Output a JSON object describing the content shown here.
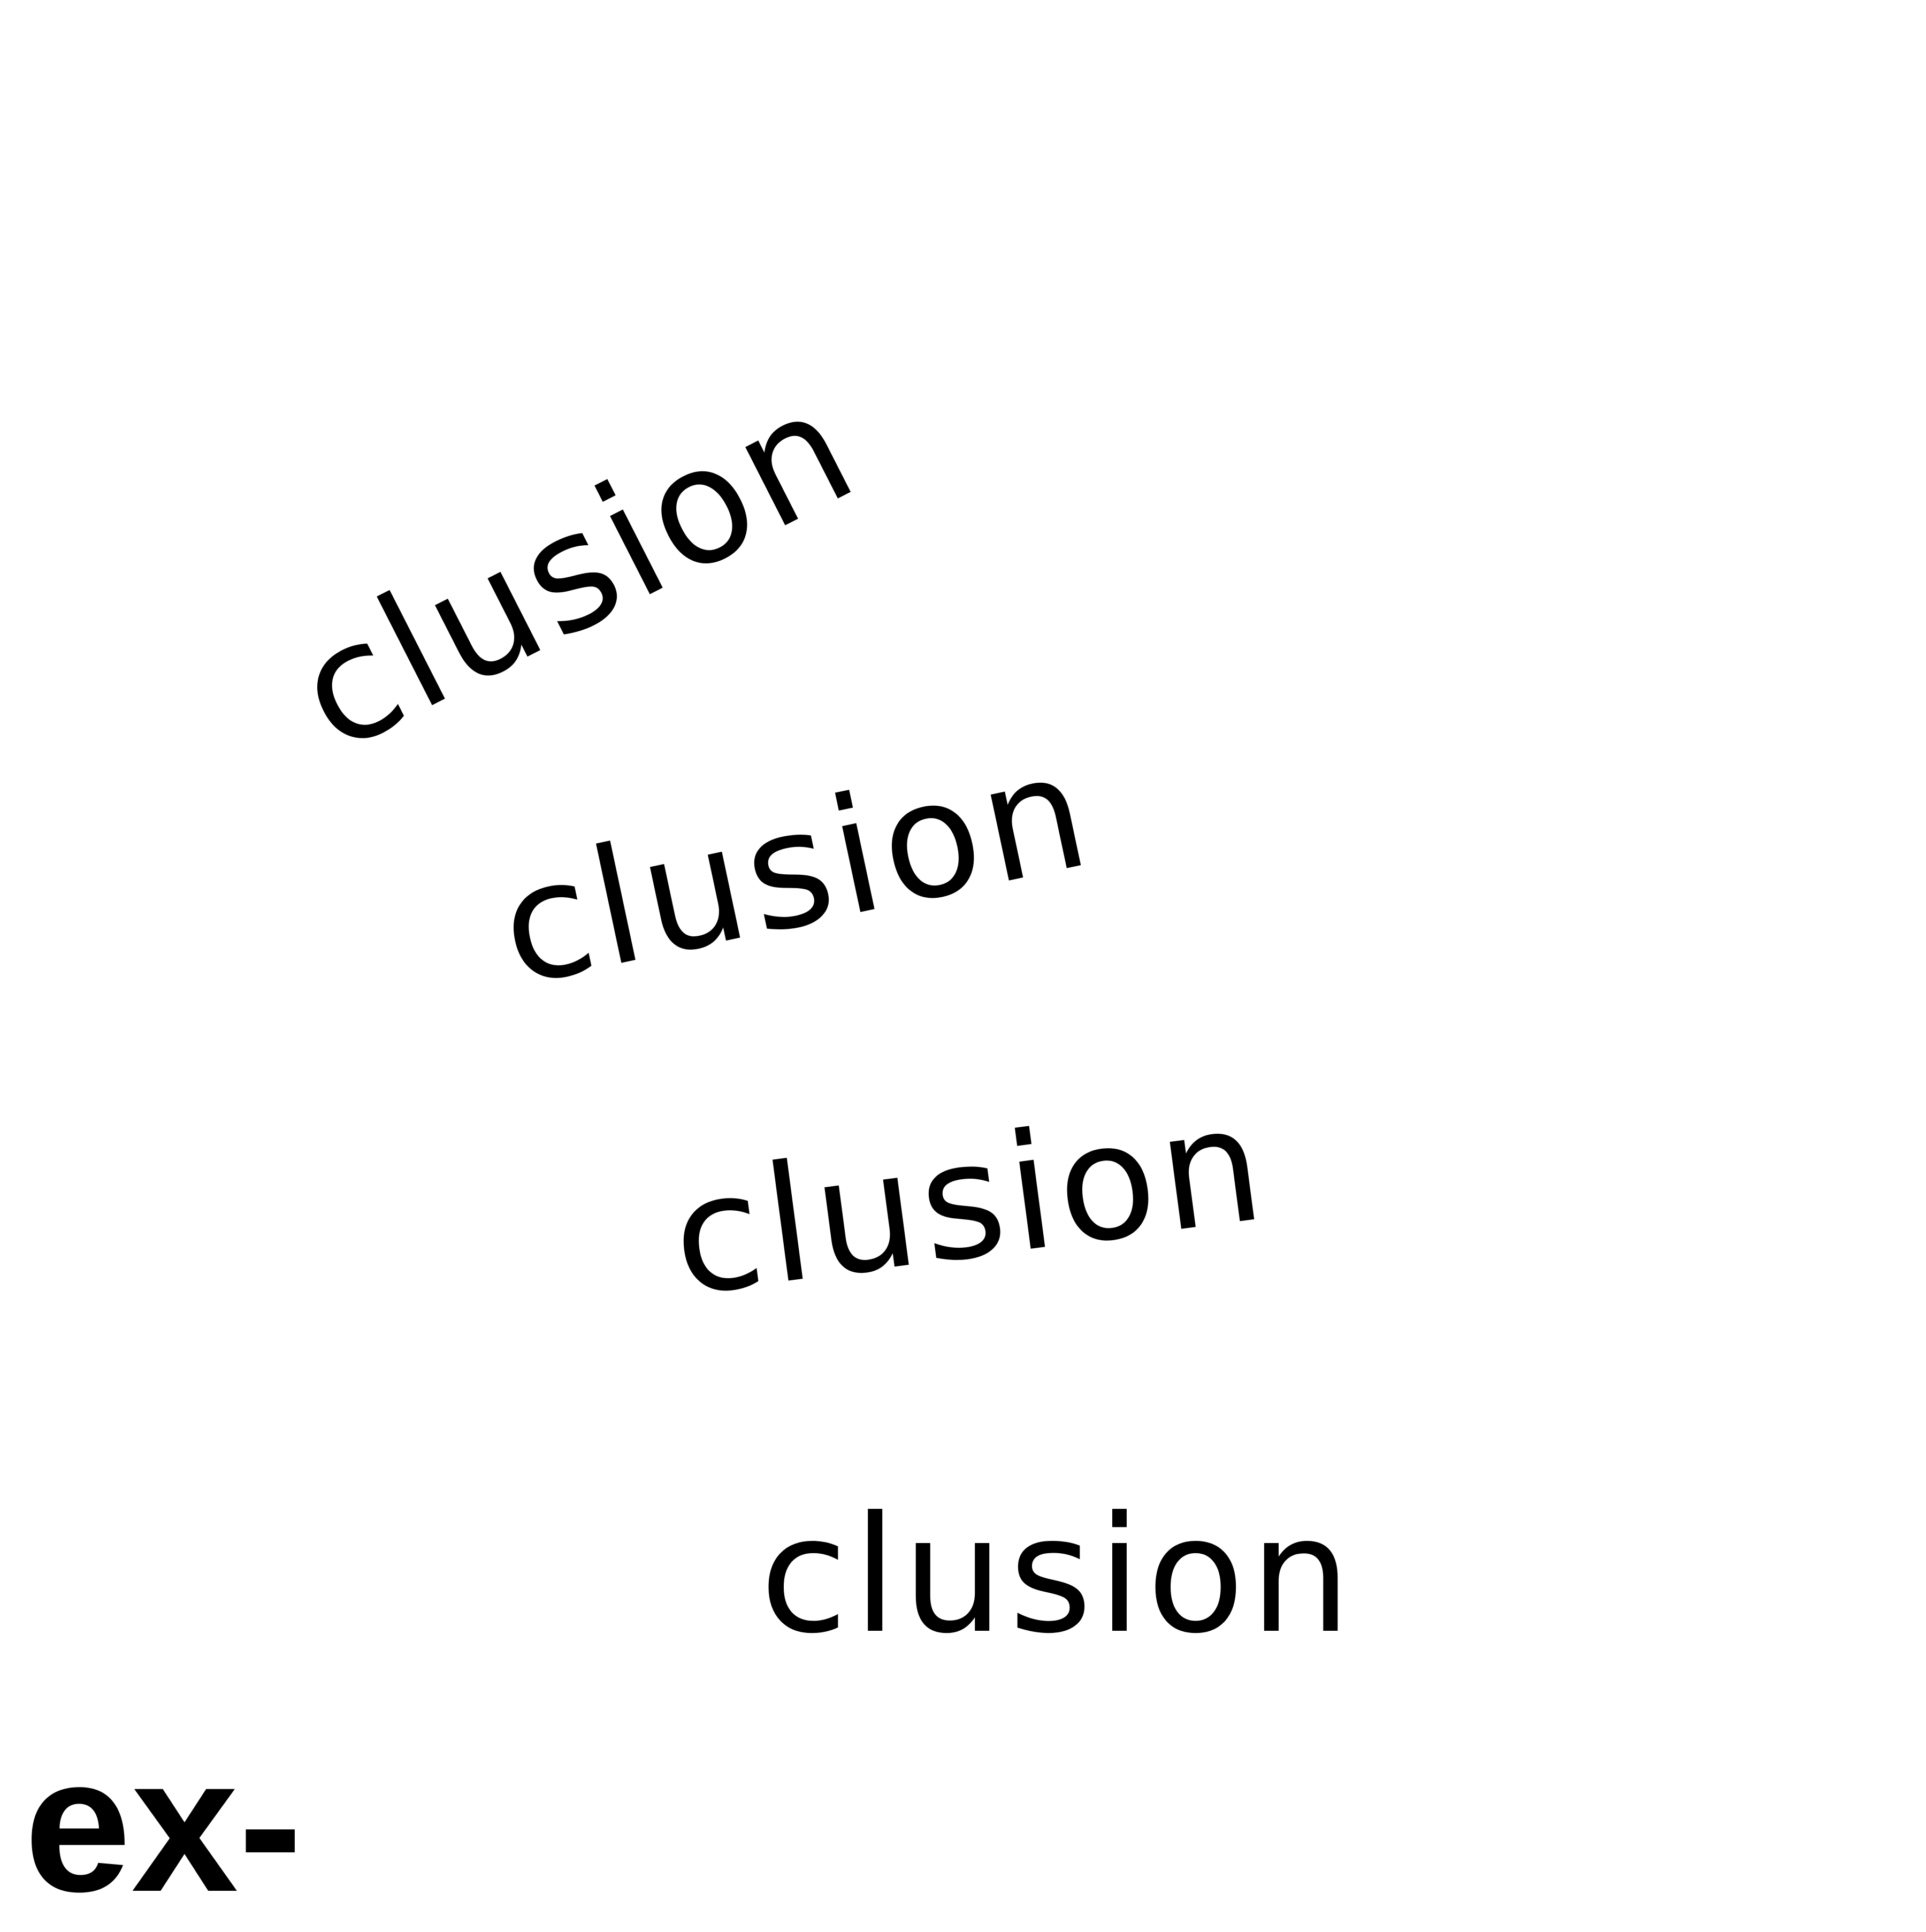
{
  "words": [
    "clusion",
    "clusion",
    "clusion",
    "clusion"
  ],
  "prefix": "ex-",
  "colors": {
    "background": "#ffffff",
    "text": "#000000"
  }
}
